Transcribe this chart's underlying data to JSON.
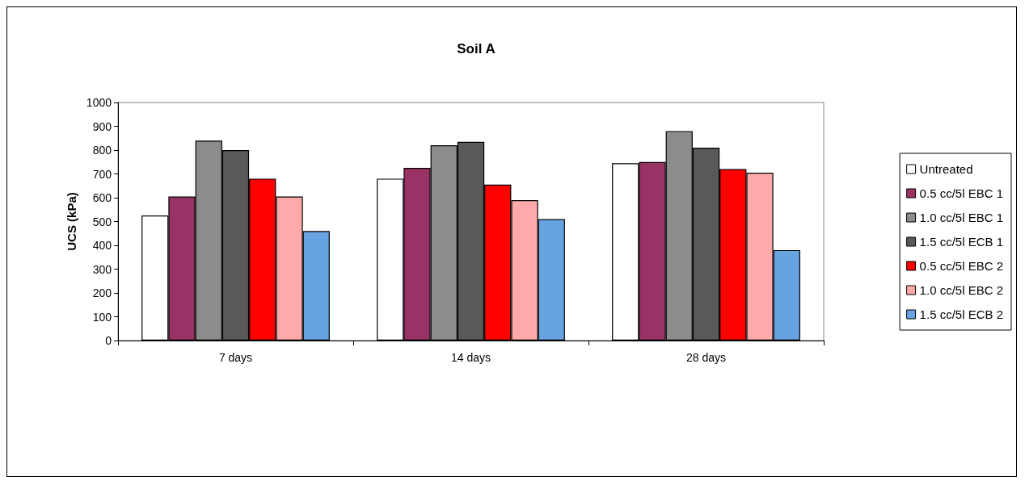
{
  "chart_data": {
    "type": "bar",
    "title": "Soil A",
    "ylabel": "UCS (kPa)",
    "categories": [
      "7 days",
      "14 days",
      "28 days"
    ],
    "series": [
      {
        "name": "Untreated",
        "color": "#ffffff",
        "values": [
          525,
          680,
          745
        ]
      },
      {
        "name": "0.5 cc/5l EBC 1",
        "color": "#993366",
        "values": [
          605,
          725,
          750
        ]
      },
      {
        "name": "1.0 cc/5l EBC 1",
        "color": "#8c8c8c",
        "values": [
          840,
          820,
          880
        ]
      },
      {
        "name": "1.5 cc/5l ECB 1",
        "color": "#595959",
        "values": [
          800,
          835,
          810
        ]
      },
      {
        "name": "0.5 cc/5l EBC 2",
        "color": "#ff0000",
        "values": [
          680,
          655,
          720
        ]
      },
      {
        "name": "1.0 cc/5l EBC 2",
        "color": "#ffaaaa",
        "values": [
          605,
          590,
          705
        ]
      },
      {
        "name": "1.5 cc/5l ECB 2",
        "color": "#66a3e0",
        "values": [
          460,
          510,
          380
        ]
      }
    ],
    "ylim": [
      0,
      1000
    ],
    "yticks": [
      0,
      100,
      200,
      300,
      400,
      500,
      600,
      700,
      800,
      900,
      1000
    ],
    "grid": false,
    "legend": "right"
  }
}
